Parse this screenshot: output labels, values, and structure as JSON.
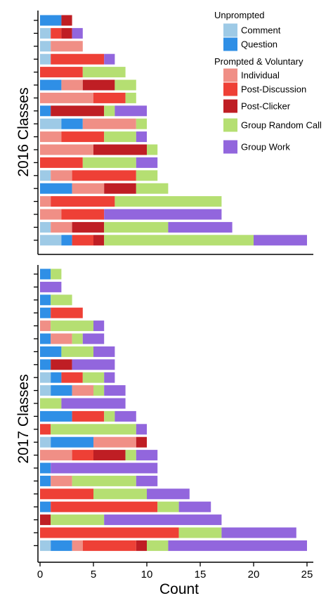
{
  "chart_data": {
    "type": "bar",
    "orientation": "horizontal",
    "stacked": true,
    "xlabel": "Count",
    "xlim": [
      0,
      25
    ],
    "xticks": [
      0,
      5,
      10,
      15,
      20,
      25
    ],
    "grid": false,
    "legend_position": "top-right",
    "components": [
      "Comment",
      "Question",
      "Individual",
      "Post-Discussion",
      "Post-Clicker",
      "Group Random Call",
      "Group Work"
    ],
    "colors": {
      "Comment": "#9ecae6",
      "Question": "#2f8fe6",
      "Individual": "#f08f86",
      "Post-Discussion": "#ee4036",
      "Post-Clicker": "#bf1e24",
      "Group Random Call": "#b5df72",
      "Group Work": "#9266dd"
    },
    "legend": {
      "groups": [
        {
          "title": "Unprompted",
          "items": [
            "Comment",
            "Question"
          ]
        },
        {
          "title": "Prompted & Voluntary",
          "items": [
            "Individual",
            "Post-Discussion",
            "Post-Clicker",
            "Group Random Call",
            "Group Work"
          ]
        }
      ]
    },
    "panels": [
      {
        "ylabel": "2016 Classes",
        "bars": [
          [
            0,
            2,
            0,
            0,
            1,
            0,
            0
          ],
          [
            1,
            0,
            0,
            1,
            1,
            0,
            1
          ],
          [
            1,
            0,
            3,
            0,
            0,
            0,
            0
          ],
          [
            1,
            0,
            0,
            5,
            0,
            0,
            1
          ],
          [
            0,
            0,
            0,
            4,
            0,
            4,
            0
          ],
          [
            0,
            2,
            2,
            0,
            3,
            2,
            0
          ],
          [
            0,
            0,
            5,
            3,
            0,
            1,
            0
          ],
          [
            0,
            1,
            0,
            0,
            5,
            1,
            3
          ],
          [
            2,
            2,
            5,
            0,
            0,
            1,
            0
          ],
          [
            0,
            0,
            2,
            4,
            0,
            3,
            1
          ],
          [
            0,
            0,
            5,
            0,
            5,
            1,
            0
          ],
          [
            0,
            0,
            0,
            4,
            0,
            5,
            2
          ],
          [
            1,
            0,
            2,
            6,
            0,
            2,
            0
          ],
          [
            0,
            3,
            3,
            0,
            3,
            3,
            0
          ],
          [
            0,
            0,
            1,
            6,
            0,
            10,
            0
          ],
          [
            0,
            0,
            2,
            4,
            0,
            0,
            11
          ],
          [
            1,
            0,
            2,
            0,
            3,
            6,
            6
          ],
          [
            2,
            1,
            0,
            2,
            1,
            14,
            5
          ]
        ]
      },
      {
        "ylabel": "2017 Classes",
        "bars": [
          [
            0,
            1,
            0,
            0,
            0,
            1,
            0
          ],
          [
            0,
            0,
            0,
            0,
            0,
            0,
            2
          ],
          [
            0,
            1,
            0,
            0,
            0,
            2,
            0
          ],
          [
            0,
            1,
            0,
            3,
            0,
            0,
            0
          ],
          [
            0,
            0,
            1,
            0,
            0,
            4,
            1
          ],
          [
            0,
            1,
            2,
            0,
            0,
            1,
            2
          ],
          [
            0,
            2,
            0,
            0,
            0,
            3,
            2
          ],
          [
            0,
            1,
            0,
            0,
            2,
            0,
            4
          ],
          [
            1,
            1,
            0,
            2,
            0,
            2,
            1
          ],
          [
            1,
            2,
            2,
            0,
            0,
            1,
            2
          ],
          [
            0,
            0,
            0,
            0,
            0,
            2,
            6
          ],
          [
            0,
            3,
            0,
            3,
            0,
            1,
            2
          ],
          [
            0,
            0,
            0,
            1,
            0,
            8,
            1
          ],
          [
            1,
            4,
            4,
            0,
            1,
            0,
            0
          ],
          [
            0,
            0,
            3,
            2,
            3,
            1,
            2
          ],
          [
            0,
            1,
            0,
            0,
            0,
            0,
            10
          ],
          [
            0,
            1,
            2,
            0,
            0,
            6,
            2
          ],
          [
            0,
            0,
            0,
            5,
            0,
            5,
            4
          ],
          [
            0,
            1,
            0,
            10,
            0,
            2,
            3
          ],
          [
            0,
            0,
            0,
            0,
            1,
            5,
            11
          ],
          [
            0,
            0,
            0,
            13,
            0,
            4,
            7
          ],
          [
            1,
            2,
            1,
            5,
            1,
            2,
            13
          ]
        ]
      }
    ]
  }
}
